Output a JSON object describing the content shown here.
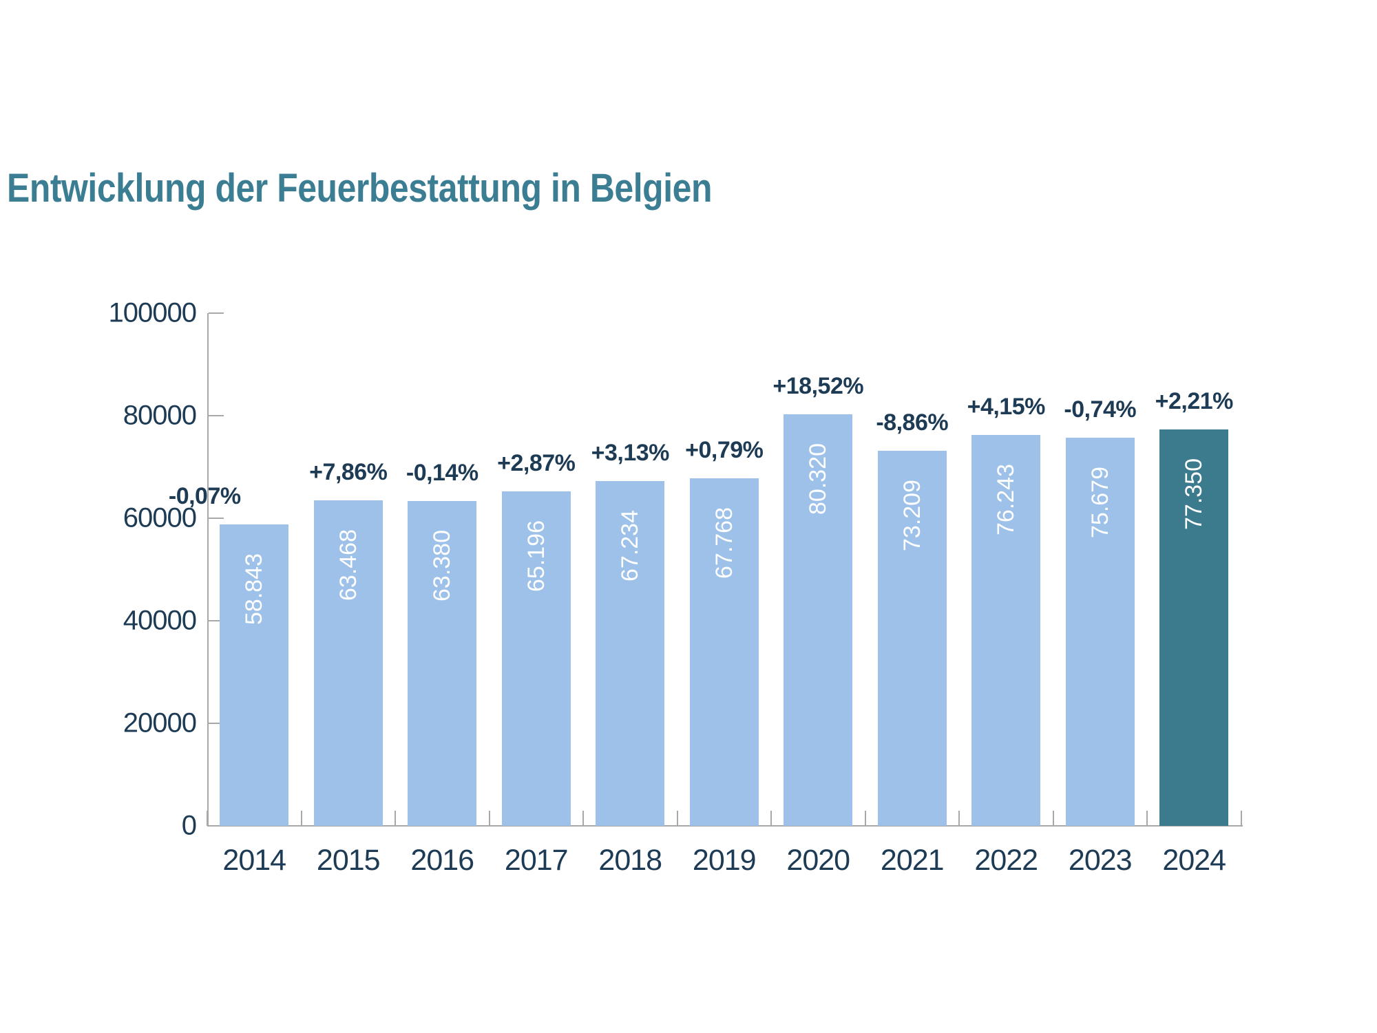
{
  "chart_data": {
    "type": "bar",
    "title": "Entwicklung der Feuerbestattung in Belgien",
    "categories": [
      "2014",
      "2015",
      "2016",
      "2017",
      "2018",
      "2019",
      "2020",
      "2021",
      "2022",
      "2023",
      "2024"
    ],
    "values": [
      58843,
      63468,
      63380,
      65196,
      67234,
      67768,
      80320,
      73209,
      76243,
      75679,
      77350
    ],
    "bar_value_labels": [
      "58.843",
      "63.468",
      "63.380",
      "65.196",
      "67.234",
      "67.768",
      "80.320",
      "73.209",
      "76.243",
      "75.679",
      "77.350"
    ],
    "pct_change_labels": [
      "-0,07%",
      "+7,86%",
      "-0,14%",
      "+2,87%",
      "+3,13%",
      "+0,79%",
      "+18,52%",
      "-8,86%",
      "+4,15%",
      "-0,74%",
      "+2,21%"
    ],
    "xlabel": "",
    "ylabel": "",
    "ylim": [
      0,
      100000
    ],
    "ytick_values": [
      0,
      20000,
      40000,
      60000,
      80000,
      100000
    ],
    "ytick_labels": [
      "0",
      "20000",
      "40000",
      "60000",
      "80000",
      "100000"
    ],
    "grid": false,
    "legend": "none",
    "highlight_category": "2024",
    "colors": {
      "bar_default": "#9dc1e8",
      "bar_highlight": "#3c7b8d",
      "title_text": "#3b7d92",
      "axis_text": "#1d3b54",
      "pct_text": "#1d3b54",
      "bar_value_text": "#ffffff",
      "axis_line": "#a8a8a8"
    }
  }
}
